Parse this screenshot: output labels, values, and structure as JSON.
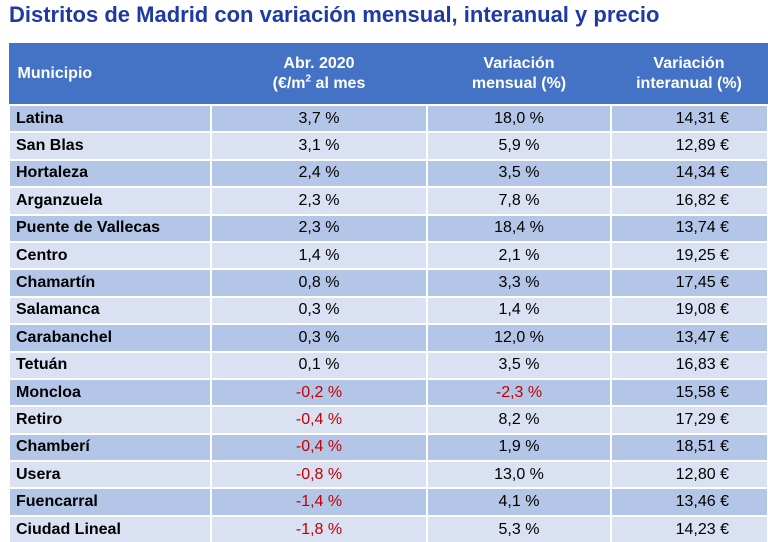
{
  "title": "Distritos de Madrid con variación mensual, interanual y precio",
  "headers": {
    "municipio": "Municipio",
    "abr_line1": "Abr. 2020",
    "abr_line2_pre": "(€/m",
    "abr_line2_sup": "2",
    "abr_line2_post": " al mes",
    "mensual_line1": "Variación",
    "mensual_line2": "mensual (%)",
    "interanual_line1": "Variación",
    "interanual_line2": "interanual (%)"
  },
  "colors": {
    "title": "#1f3aa6",
    "header_bg": "#4472c4",
    "row_dark": "#b4c6e7",
    "row_light": "#d9e1f2",
    "negative": "#c00000"
  },
  "rows": [
    {
      "municipio": "Latina",
      "abr": "3,7 %",
      "mensual": "18,0 %",
      "interanual": "14,31 €"
    },
    {
      "municipio": "San Blas",
      "abr": "3,1 %",
      "mensual": "5,9 %",
      "interanual": "12,89 €"
    },
    {
      "municipio": "Hortaleza",
      "abr": "2,4 %",
      "mensual": "3,5 %",
      "interanual": "14,34 €"
    },
    {
      "municipio": "Arganzuela",
      "abr": "2,3 %",
      "mensual": "7,8 %",
      "interanual": "16,82 €"
    },
    {
      "municipio": "Puente de Vallecas",
      "abr": "2,3 %",
      "mensual": "18,4 %",
      "interanual": "13,74 €"
    },
    {
      "municipio": "Centro",
      "abr": "1,4 %",
      "mensual": "2,1 %",
      "interanual": "19,25 €"
    },
    {
      "municipio": "Chamartín",
      "abr": "0,8 %",
      "mensual": "3,3 %",
      "interanual": "17,45 €"
    },
    {
      "municipio": "Salamanca",
      "abr": "0,3 %",
      "mensual": "1,4 %",
      "interanual": "19,08 €"
    },
    {
      "municipio": "Carabanchel",
      "abr": "0,3 %",
      "mensual": "12,0 %",
      "interanual": "13,47 €"
    },
    {
      "municipio": "Tetuán",
      "abr": "0,1 %",
      "mensual": "3,5 %",
      "interanual": "16,83 €"
    },
    {
      "municipio": "Moncloa",
      "abr": "-0,2 %",
      "mensual": "-2,3 %",
      "interanual": "15,58 €"
    },
    {
      "municipio": "Retiro",
      "abr": "-0,4 %",
      "mensual": "8,2 %",
      "interanual": "17,29 €"
    },
    {
      "municipio": "Chamberí",
      "abr": "-0,4 %",
      "mensual": "1,9 %",
      "interanual": "18,51 €"
    },
    {
      "municipio": "Usera",
      "abr": "-0,8 %",
      "mensual": "13,0 %",
      "interanual": "12,80 €"
    },
    {
      "municipio": "Fuencarral",
      "abr": "-1,4 %",
      "mensual": "4,1 %",
      "interanual": "13,46 €"
    },
    {
      "municipio": "Ciudad Lineal",
      "abr": "-1,8 %",
      "mensual": "5,3 %",
      "interanual": "14,23 €"
    }
  ]
}
